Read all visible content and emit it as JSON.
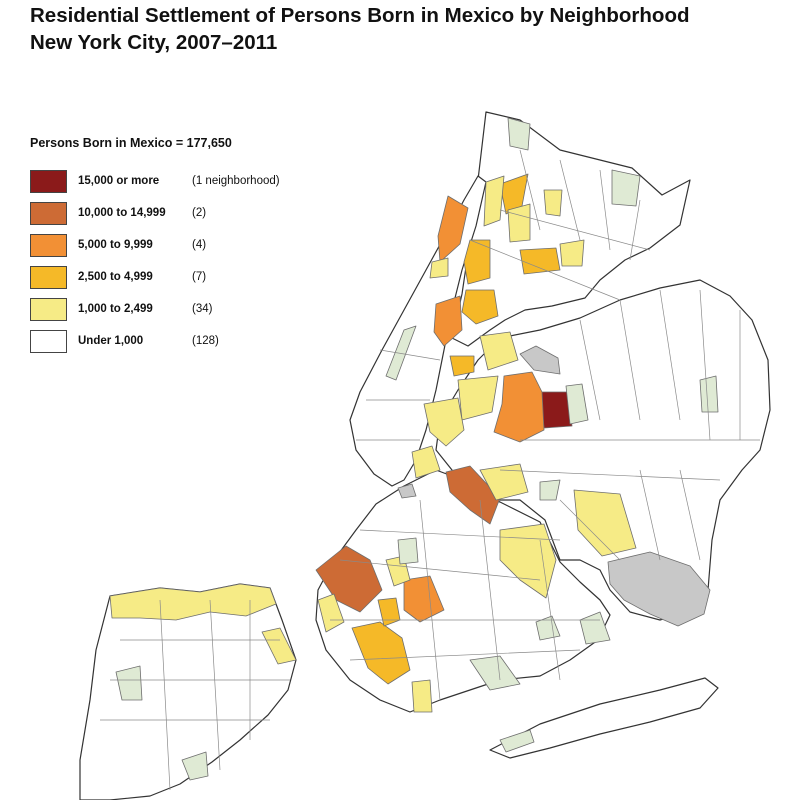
{
  "title_line1": "Residential Settlement of Persons Born in Mexico by Neighborhood",
  "title_line2": "New York City, 2007–2011",
  "legend": {
    "heading": "Persons Born in Mexico = 177,650",
    "classes": [
      {
        "label": "15,000 or more",
        "count": "(1 neighborhood)",
        "color": "#8b1a1a"
      },
      {
        "label": "10,000 to 14,999",
        "count": "(2)",
        "color": "#cd6b35"
      },
      {
        "label": "5,000 to 9,999",
        "count": "(4)",
        "color": "#f29035"
      },
      {
        "label": "2,500 to 4,999",
        "count": "(7)",
        "color": "#f5b928"
      },
      {
        "label": "1,000 to 2,499",
        "count": "(34)",
        "color": "#f6eb86"
      },
      {
        "label": "Under 1,000",
        "count": "(128)",
        "color": "#ffffff"
      }
    ]
  },
  "map_colors": {
    "boundary": "#6e6e6e",
    "borough_boundary": "#333333",
    "parkland": "#dfead4",
    "airport_nodata": "#c8c8c8"
  }
}
